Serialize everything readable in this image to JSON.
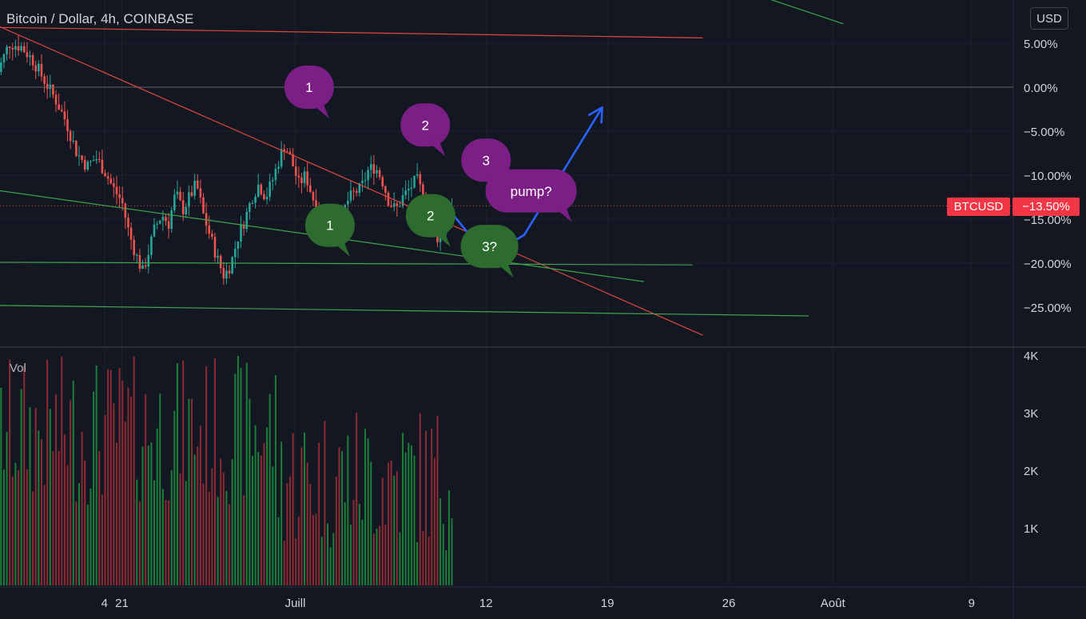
{
  "header": {
    "title": "Bitcoin / Dollar, 4h, COINBASE",
    "currency_button": "USD"
  },
  "volume_label": "Vol",
  "price_tag": {
    "symbol": "BTCUSD",
    "value": "−13.50%"
  },
  "colors": {
    "up": "#26a69a",
    "down": "#ef5350",
    "up_vol": "#1b7f3a",
    "down_vol": "#8e2a33",
    "red_line": "#e0473f",
    "green_line": "#3fa34d",
    "blue_arrow": "#2962ff",
    "bubble_purple": "#7b1f87",
    "bubble_green": "#2e6b2e",
    "badge_red": "#f23645"
  },
  "chart_data": {
    "type": "candlestick",
    "title": "Bitcoin / Dollar, 4h, COINBASE",
    "y_axis": {
      "unit": "%",
      "ticks": [
        "5.00%",
        "0.00%",
        "−5.00%",
        "−10.00%",
        "−15.00%",
        "−20.00%",
        "−25.00%"
      ],
      "tick_values": [
        5,
        0,
        -5,
        -10,
        -15,
        -20,
        -25
      ],
      "range": [
        -28,
        8.4
      ]
    },
    "volume_axis": {
      "ticks": [
        "4K",
        "3K",
        "2K",
        "1K"
      ],
      "tick_values": [
        4000,
        3000,
        2000,
        1000
      ],
      "range": [
        0,
        4200
      ]
    },
    "x_axis": {
      "ticks": [
        "4",
        "21",
        "Juill",
        "12",
        "19",
        "26",
        "Août",
        "9"
      ],
      "tick_day_index": [
        -1,
        0,
        10,
        21,
        28,
        35,
        41,
        49
      ],
      "range_days": [
        -7.3,
        48
      ]
    },
    "series_summary": {
      "start_pct": 2.0,
      "high_pct": 5.8,
      "low_pct": -26.0,
      "last_pct": -13.5,
      "last_day": 19.1
    },
    "price_path": [
      [
        -7.3,
        1.0
      ],
      [
        -6.5,
        5.0
      ],
      [
        -5.8,
        4.6
      ],
      [
        -5.1,
        3.0
      ],
      [
        -4.4,
        0.5
      ],
      [
        -3.8,
        -1.5
      ],
      [
        -3.2,
        -4.0
      ],
      [
        -2.6,
        -7.5
      ],
      [
        -2.0,
        -9.0
      ],
      [
        -1.5,
        -8.0
      ],
      [
        -1.0,
        -9.5
      ],
      [
        -0.5,
        -11.5
      ],
      [
        0.0,
        -13.0
      ],
      [
        0.4,
        -16.5
      ],
      [
        0.8,
        -19.0
      ],
      [
        1.2,
        -21.0
      ],
      [
        1.5,
        -19.0
      ],
      [
        1.9,
        -16.0
      ],
      [
        2.3,
        -14.5
      ],
      [
        2.7,
        -15.5
      ],
      [
        3.1,
        -12.0
      ],
      [
        3.5,
        -14.0
      ],
      [
        3.9,
        -12.5
      ],
      [
        4.3,
        -11.0
      ],
      [
        4.7,
        -14.5
      ],
      [
        5.1,
        -17.0
      ],
      [
        5.5,
        -19.5
      ],
      [
        5.9,
        -21.5
      ],
      [
        6.3,
        -20.0
      ],
      [
        6.7,
        -17.0
      ],
      [
        7.1,
        -15.0
      ],
      [
        7.5,
        -12.5
      ],
      [
        7.9,
        -11.0
      ],
      [
        8.3,
        -12.5
      ],
      [
        8.7,
        -10.5
      ],
      [
        9.1,
        -8.0
      ],
      [
        9.4,
        -6.5
      ],
      [
        9.8,
        -8.5
      ],
      [
        10.2,
        -11.0
      ],
      [
        10.6,
        -10.0
      ],
      [
        11.0,
        -12.5
      ],
      [
        11.4,
        -14.5
      ],
      [
        11.8,
        -15.5
      ],
      [
        12.2,
        -14.0
      ],
      [
        12.6,
        -15.0
      ],
      [
        13.0,
        -13.0
      ],
      [
        13.4,
        -12.0
      ],
      [
        13.8,
        -11.5
      ],
      [
        14.2,
        -9.5
      ],
      [
        14.6,
        -9.0
      ],
      [
        15.0,
        -10.5
      ],
      [
        15.4,
        -13.0
      ],
      [
        15.8,
        -14.0
      ],
      [
        16.2,
        -12.5
      ],
      [
        16.6,
        -11.5
      ],
      [
        17.0,
        -10.5
      ],
      [
        17.4,
        -12.5
      ],
      [
        17.8,
        -15.5
      ],
      [
        18.2,
        -17.0
      ],
      [
        18.6,
        -15.5
      ],
      [
        19.1,
        -13.5
      ]
    ],
    "trendlines": [
      {
        "color": "red",
        "points": [
          [
            -7.3,
            6.8
          ],
          [
            33.5,
            5.6
          ]
        ]
      },
      {
        "color": "red",
        "points": [
          [
            -7.3,
            7.1
          ],
          [
            33.5,
            -28.2
          ]
        ]
      },
      {
        "color": "green",
        "points": [
          [
            -7.3,
            -11.7
          ],
          [
            30.1,
            -22.1
          ]
        ]
      },
      {
        "color": "green",
        "points": [
          [
            -7.3,
            -19.9
          ],
          [
            32.9,
            -20.2
          ]
        ]
      },
      {
        "color": "green",
        "points": [
          [
            -7.3,
            -24.8
          ],
          [
            39.6,
            -26.0
          ]
        ]
      },
      {
        "color": "green",
        "points": [
          [
            36.6,
            10.5
          ],
          [
            41.6,
            7.2
          ]
        ]
      }
    ],
    "horizontal_lines": [
      {
        "y": 0,
        "style": "solid"
      },
      {
        "y": -13.5,
        "style": "dotted",
        "color": "red"
      }
    ],
    "forecast_arrow": [
      [
        19.1,
        -14.5
      ],
      [
        21.1,
        -19.3
      ],
      [
        23.2,
        -16.8
      ],
      [
        27.7,
        -2.3
      ]
    ],
    "annotations": [
      {
        "text": "1",
        "kind": "purple",
        "x": 10.8,
        "y": 0.0
      },
      {
        "text": "2",
        "kind": "purple",
        "x": 17.5,
        "y": -4.3
      },
      {
        "text": "3",
        "kind": "purple",
        "x": 21.0,
        "y": -8.3
      },
      {
        "text": "pump?",
        "kind": "purple",
        "x": 23.6,
        "y": -11.8
      },
      {
        "text": "1",
        "kind": "green",
        "x": 12.0,
        "y": -15.7
      },
      {
        "text": "2",
        "kind": "green",
        "x": 17.8,
        "y": -14.6
      },
      {
        "text": "3?",
        "kind": "green",
        "x": 21.2,
        "y": -18.1
      }
    ]
  }
}
